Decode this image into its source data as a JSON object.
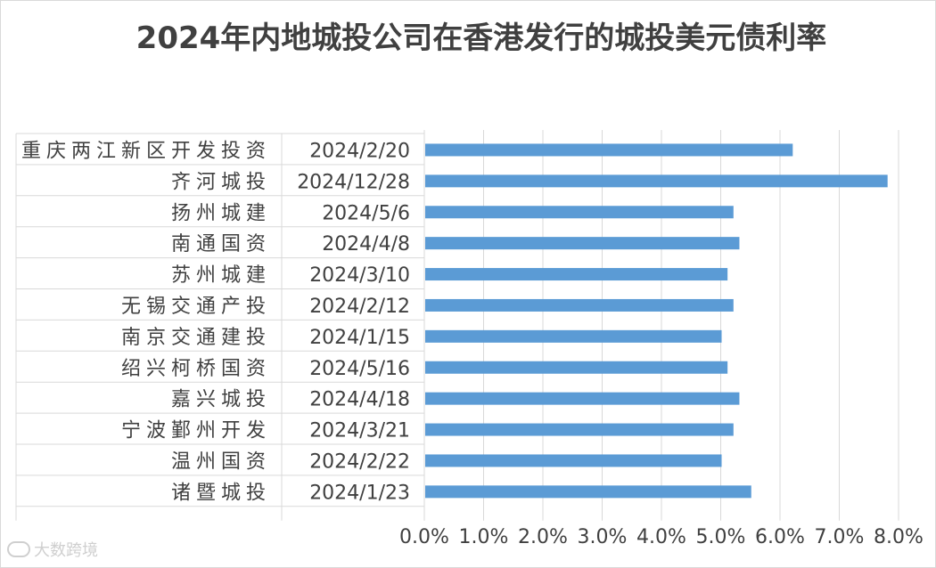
{
  "chart_data": {
    "type": "bar",
    "orientation": "horizontal",
    "title": "2024年内地城投公司在香港发行的城投美元债利率",
    "categories": [
      {
        "name": "重庆两江新区开发投资",
        "date": "2024/2/20"
      },
      {
        "name": "齐河城投",
        "date": "2024/12/28"
      },
      {
        "name": "扬州城建",
        "date": "2024/5/6"
      },
      {
        "name": "南通国资",
        "date": "2024/4/8"
      },
      {
        "name": "苏州城建",
        "date": "2024/3/10"
      },
      {
        "name": "无锡交通产投",
        "date": "2024/2/12"
      },
      {
        "name": "南京交通建投",
        "date": "2024/1/15"
      },
      {
        "name": "绍兴柯桥国资",
        "date": "2024/5/16"
      },
      {
        "name": "嘉兴城投",
        "date": "2024/4/18"
      },
      {
        "name": "宁波鄞州开发",
        "date": "2024/3/21"
      },
      {
        "name": "温州国资",
        "date": "2024/2/22"
      },
      {
        "name": "诸暨城投",
        "date": "2024/1/23"
      }
    ],
    "values": [
      6.2,
      7.8,
      5.2,
      5.3,
      5.1,
      5.2,
      5.0,
      5.1,
      5.3,
      5.2,
      5.0,
      5.5
    ],
    "xlim": [
      0,
      8
    ],
    "x_ticks": [
      "0.0%",
      "1.0%",
      "2.0%",
      "3.0%",
      "4.0%",
      "5.0%",
      "6.0%",
      "7.0%",
      "8.0%"
    ],
    "bar_color": "#5b9bd5",
    "grid": true,
    "legend": "none"
  },
  "watermark": "大数跨境"
}
